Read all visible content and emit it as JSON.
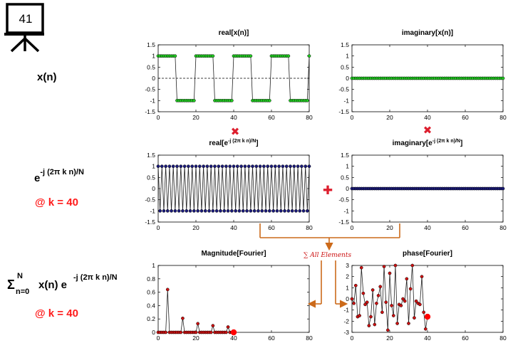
{
  "slide": {
    "number": "41"
  },
  "labels": {
    "xn": "x(n)",
    "kernel": "e",
    "kernel_exp": "-j (2π k n)/N",
    "at_k_1": "@ k = 40",
    "sum_sym": "Σ",
    "sum_sup": "N",
    "sum_sub": "n=0",
    "sum_body": "x(n) e",
    "sum_exp": "-j (2π k n)/N",
    "at_k_2": "@ k = 40"
  },
  "annotations": {
    "sum_label": "∑ All Elements",
    "multiply_symbol": "✖",
    "plus_symbol": "✚"
  },
  "colors": {
    "green_marker": "#22cc22",
    "navy_marker": "#1a1a7a",
    "red_marker": "#cc1111",
    "highlight": "#ff0000",
    "arrow": "#cc6a1a",
    "symbol": "#dd1f2e"
  },
  "chart_data": [
    {
      "id": "real-x",
      "type": "line",
      "title": "real[x(n)]",
      "title_sup": "",
      "title_tail": "",
      "marker_color": "#22cc22",
      "xlim": [
        0,
        80
      ],
      "ylim": [
        -1.5,
        1.5
      ],
      "xticks": [
        0,
        20,
        40,
        60,
        80
      ],
      "yticks": [
        1.5,
        1,
        0.5,
        0,
        -0.5,
        -1,
        -1.5
      ],
      "ytick_labels": [
        "1.5",
        "1",
        "0.5",
        "0",
        "-0.5",
        "-1",
        "-1.5"
      ],
      "zero_line": true,
      "square_wave": {
        "n_max": 80,
        "period": 20,
        "high_from": 0,
        "high_to": 9,
        "high": 1,
        "low": -1
      }
    },
    {
      "id": "imag-x",
      "type": "line",
      "title": "imaginary[x(n)]",
      "title_sup": "",
      "title_tail": "",
      "marker_color": "#22cc22",
      "xlim": [
        0,
        80
      ],
      "ylim": [
        -1.5,
        1.5
      ],
      "xticks": [
        0,
        20,
        40,
        60,
        80
      ],
      "yticks": [
        1.5,
        1,
        0.5,
        0,
        -0.5,
        -1,
        -1.5
      ],
      "ytick_labels": [
        "1.5",
        "1",
        "0.5",
        "0",
        "-0.5",
        "-1",
        "-1.5"
      ],
      "zero_line": false,
      "constant": {
        "n_max": 80,
        "value": 0
      }
    },
    {
      "id": "real-kernel",
      "type": "line",
      "title": "real[e",
      "title_sup": "-j (2π k n)/N",
      "title_tail": "]",
      "marker_color": "#1a1a7a",
      "xlim": [
        0,
        80
      ],
      "ylim": [
        -1.5,
        1.5
      ],
      "xticks": [
        0,
        20,
        40,
        60,
        80
      ],
      "yticks": [
        1.5,
        1,
        0.5,
        0,
        -0.5,
        -1,
        -1.5
      ],
      "ytick_labels": [
        "1.5",
        "1",
        "0.5",
        "0",
        "-0.5",
        "-1",
        "-1.5"
      ],
      "zero_line": false,
      "alternating": {
        "n_max": 80,
        "even": 1,
        "odd": -1
      }
    },
    {
      "id": "imag-kernel",
      "type": "line",
      "title": "imaginary[e",
      "title_sup": "-j (2π k n)/N",
      "title_tail": "]",
      "marker_color": "#1a1a7a",
      "xlim": [
        0,
        80
      ],
      "ylim": [
        -1.5,
        1.5
      ],
      "xticks": [
        0,
        20,
        40,
        60,
        80
      ],
      "yticks": [
        1.5,
        1,
        0.5,
        0,
        -0.5,
        -1,
        -1.5
      ],
      "ytick_labels": [
        "1.5",
        "1",
        "0.5",
        "0",
        "-0.5",
        "-1",
        "-1.5"
      ],
      "zero_line": false,
      "constant": {
        "n_max": 80,
        "value": 0
      }
    },
    {
      "id": "magnitude",
      "type": "line",
      "title": "Magnitude[Fourier]",
      "title_sup": "",
      "title_tail": "",
      "marker_color": "#cc1111",
      "xlim": [
        0,
        80
      ],
      "ylim": [
        0,
        1
      ],
      "xticks": [
        0,
        20,
        40,
        60,
        80
      ],
      "yticks": [
        1,
        0.8,
        0.6,
        0.4,
        0.2,
        0
      ],
      "ytick_labels": [
        "1",
        "0.8",
        "0.6",
        "0.4",
        "0.2",
        "0"
      ],
      "zero_line": false,
      "x": [
        0,
        1,
        2,
        3,
        4,
        5,
        6,
        7,
        8,
        9,
        10,
        11,
        12,
        13,
        14,
        15,
        16,
        17,
        18,
        19,
        20,
        21,
        22,
        23,
        24,
        25,
        26,
        27,
        28,
        29,
        30,
        31,
        32,
        33,
        34,
        35,
        36,
        37,
        38,
        39,
        40
      ],
      "y": [
        0,
        0,
        0,
        0,
        0,
        0.64,
        0,
        0,
        0,
        0,
        0,
        0,
        0,
        0.21,
        0,
        0,
        0,
        0,
        0,
        0,
        0,
        0.13,
        0,
        0,
        0,
        0,
        0,
        0,
        0,
        0.1,
        0,
        0,
        0,
        0,
        0,
        0,
        0,
        0.08,
        0,
        0,
        0
      ],
      "highlight": {
        "x": 40,
        "y": 0
      }
    },
    {
      "id": "phase",
      "type": "line",
      "title": "phase[Fourier]",
      "title_sup": "",
      "title_tail": "",
      "marker_color": "#cc1111",
      "xlim": [
        0,
        80
      ],
      "ylim": [
        -3,
        3
      ],
      "xticks": [
        0,
        20,
        40,
        60,
        80
      ],
      "yticks": [
        3,
        2,
        1,
        0,
        -1,
        -2,
        -3
      ],
      "ytick_labels": [
        "3",
        "2",
        "1",
        "0",
        "-1",
        "-2",
        "-3"
      ],
      "zero_line": false,
      "x": [
        0,
        1,
        2,
        3,
        4,
        5,
        6,
        7,
        8,
        9,
        10,
        11,
        12,
        13,
        14,
        15,
        16,
        17,
        18,
        19,
        20,
        21,
        22,
        23,
        24,
        25,
        26,
        27,
        28,
        29,
        30,
        31,
        32,
        33,
        34,
        35,
        36,
        37,
        38,
        39,
        40
      ],
      "y": [
        0,
        -0.4,
        1.2,
        -1.6,
        -1.5,
        2.8,
        0.5,
        -0.5,
        -0.3,
        -2.4,
        -1.6,
        0.8,
        -2.3,
        -0.4,
        0.3,
        1.1,
        -1.2,
        2.9,
        -0.3,
        -2.8,
        2.3,
        -0.6,
        -1.5,
        3.0,
        -2.2,
        -0.5,
        -0.6,
        0.0,
        -0.2,
        1.8,
        -2.2,
        0.9,
        3.0,
        -1.7,
        -0.2,
        -0.4,
        -0.5,
        2.0,
        -1.2,
        -2.7,
        -1.6
      ],
      "highlight": {
        "x": 40,
        "y": -1.6
      }
    }
  ]
}
